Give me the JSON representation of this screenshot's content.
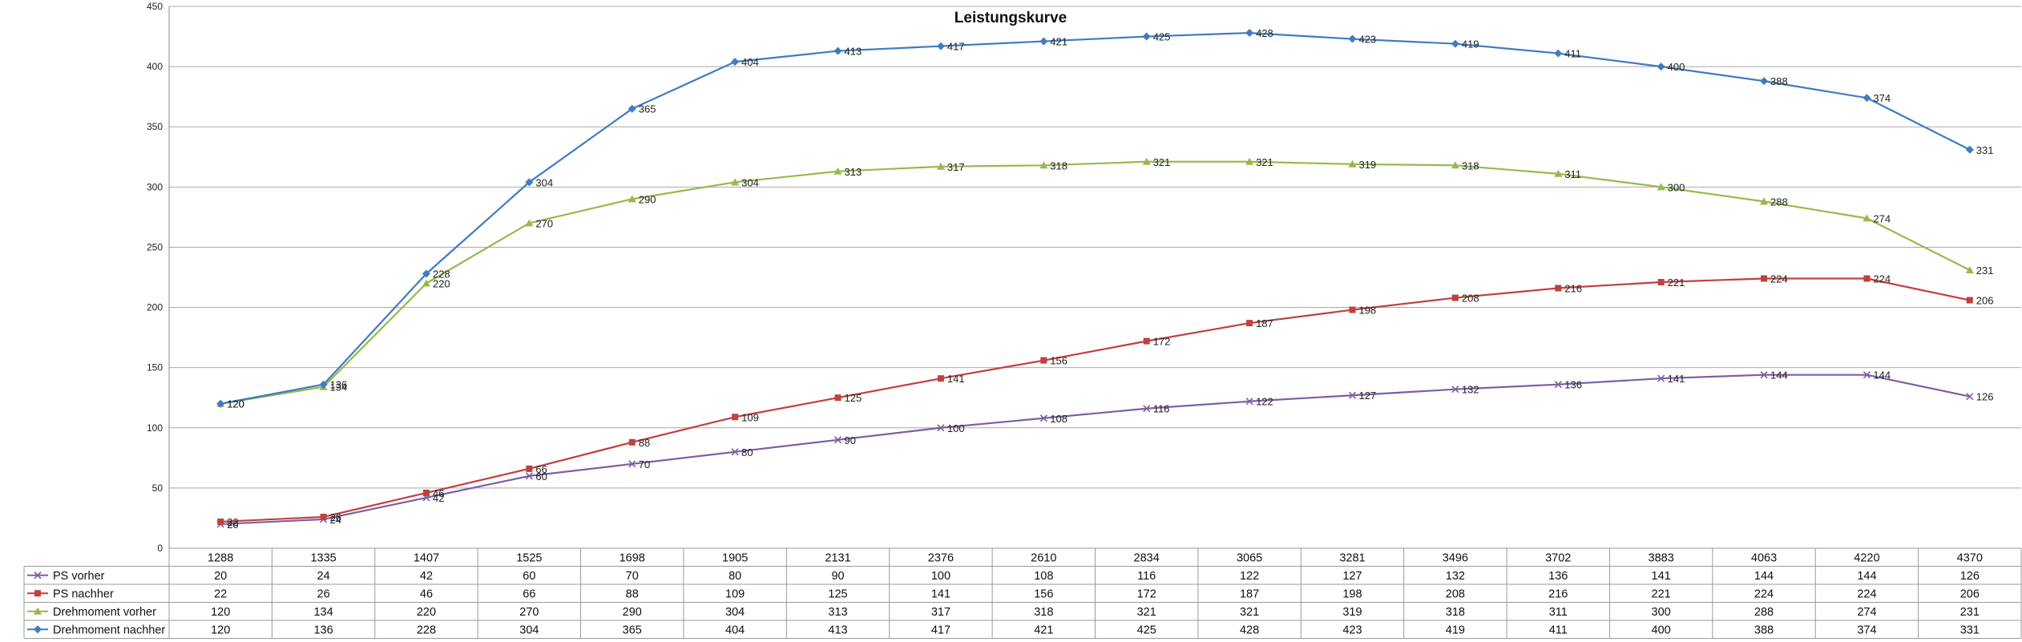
{
  "chart_data": {
    "type": "line",
    "title": "Leistungskurve",
    "categories": [
      "1288",
      "1335",
      "1407",
      "1525",
      "1698",
      "1905",
      "2131",
      "2376",
      "2610",
      "2834",
      "3065",
      "3281",
      "3496",
      "3702",
      "3883",
      "4063",
      "4220",
      "4370"
    ],
    "ylim": [
      0,
      450
    ],
    "yticks": [
      0,
      50,
      100,
      150,
      200,
      250,
      300,
      350,
      400,
      450
    ],
    "grid": true,
    "legend": "data-table-below",
    "series": [
      {
        "name": "PS vorher",
        "color": "#7b5fa6",
        "marker": "x",
        "values": [
          20,
          24,
          42,
          60,
          70,
          80,
          90,
          100,
          108,
          116,
          122,
          127,
          132,
          136,
          141,
          144,
          144,
          126
        ]
      },
      {
        "name": "PS nachher",
        "color": "#c0403e",
        "marker": "square",
        "values": [
          22,
          26,
          46,
          66,
          88,
          109,
          125,
          141,
          156,
          172,
          187,
          198,
          208,
          216,
          221,
          224,
          224,
          206
        ]
      },
      {
        "name": "Drehmoment vorher",
        "color": "#97b94b",
        "marker": "triangle",
        "values": [
          120,
          134,
          220,
          270,
          290,
          304,
          313,
          317,
          318,
          321,
          321,
          319,
          318,
          311,
          300,
          288,
          274,
          231
        ]
      },
      {
        "name": "Drehmoment nachher",
        "color": "#3f7cc0",
        "marker": "diamond",
        "values": [
          120,
          136,
          228,
          304,
          365,
          404,
          413,
          417,
          421,
          425,
          428,
          423,
          419,
          411,
          400,
          388,
          374,
          331
        ]
      }
    ]
  }
}
